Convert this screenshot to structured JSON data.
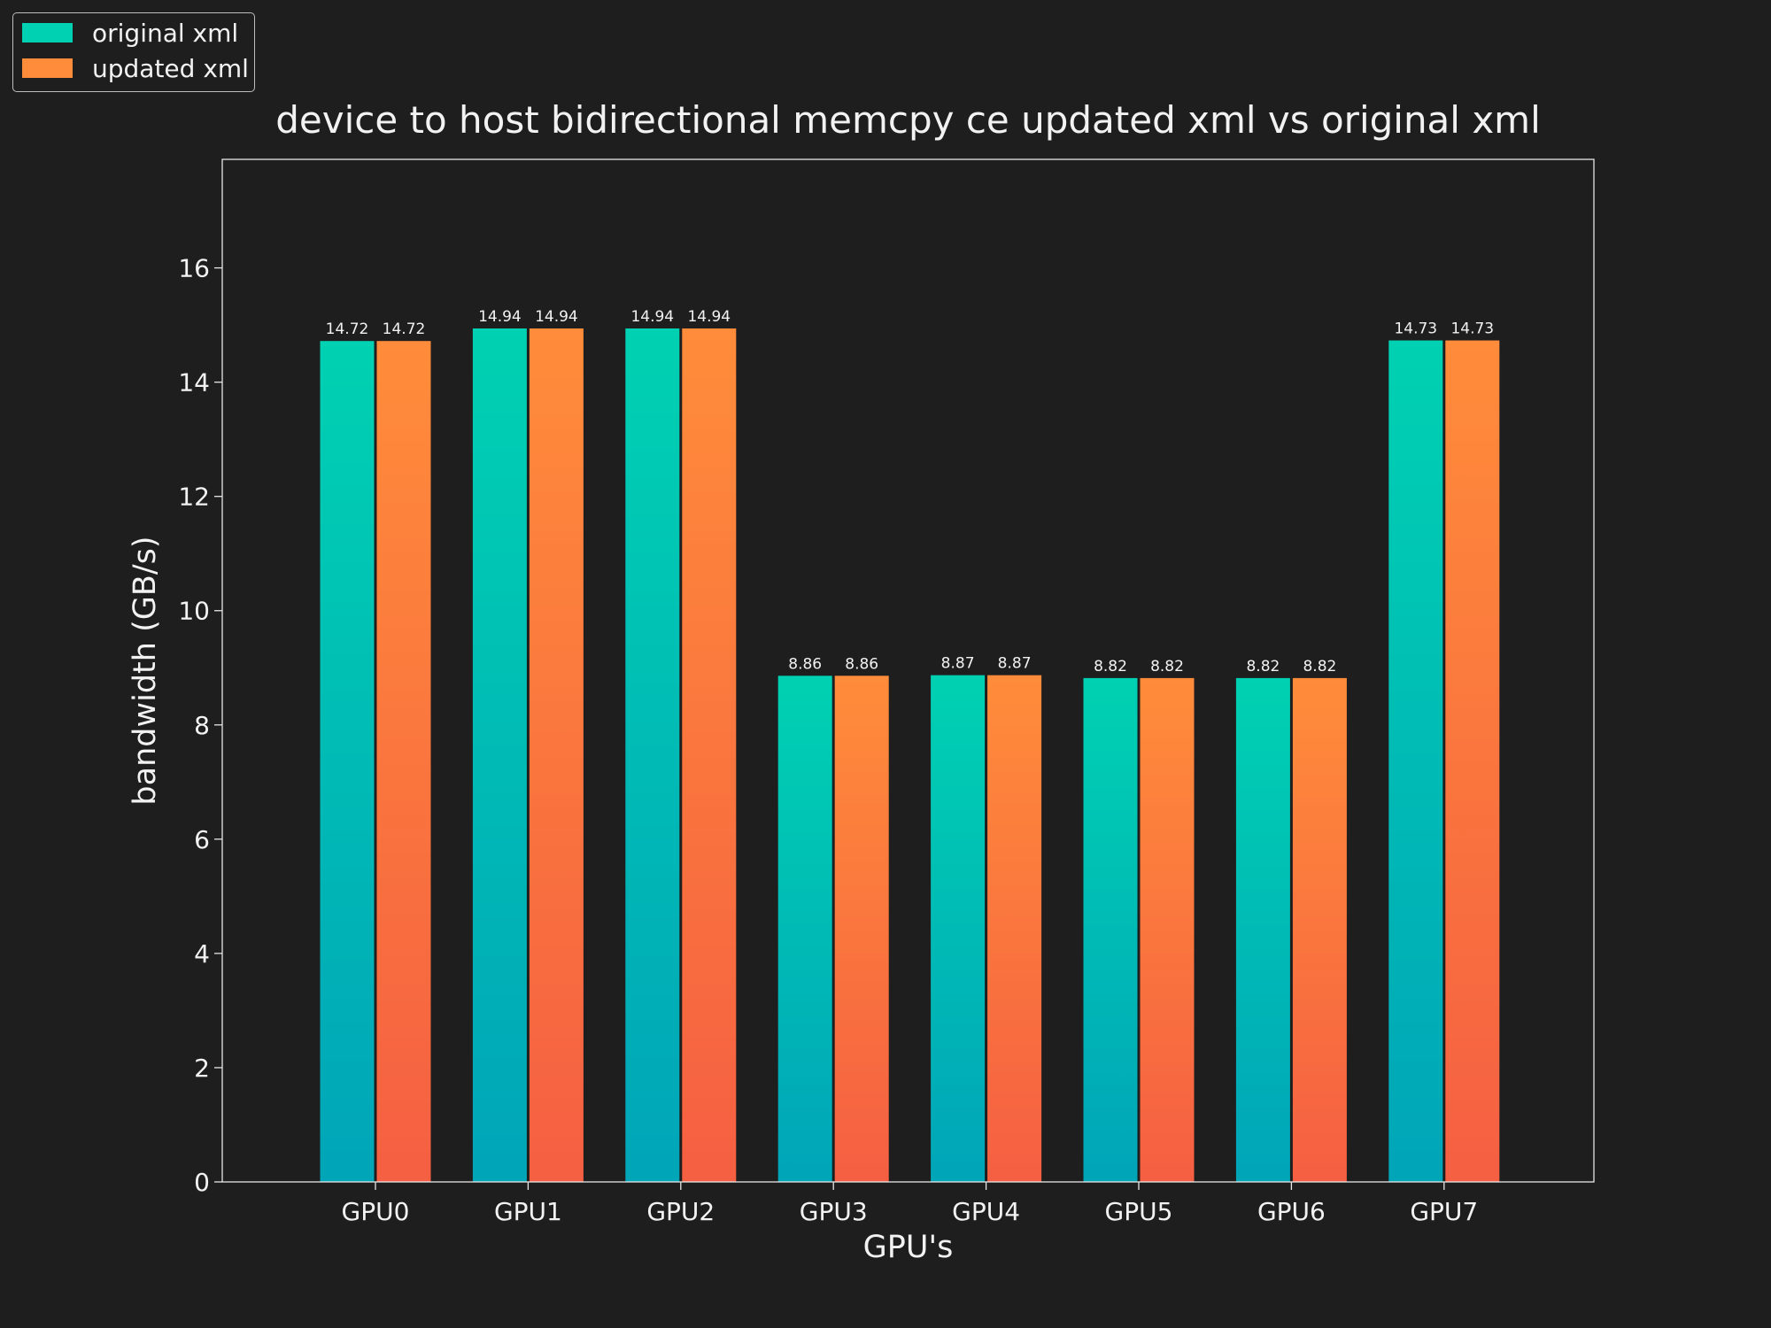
{
  "chart_data": {
    "type": "bar",
    "title": "device to host bidirectional memcpy ce updated xml vs original xml",
    "xlabel": "GPU's",
    "ylabel": "bandwidth (GB/s)",
    "categories": [
      "GPU0",
      "GPU1",
      "GPU2",
      "GPU3",
      "GPU4",
      "GPU5",
      "GPU6",
      "GPU7"
    ],
    "series": [
      {
        "name": "original xml",
        "values": [
          14.72,
          14.94,
          14.94,
          8.86,
          8.87,
          8.82,
          8.82,
          14.73
        ],
        "labels": [
          "14.72",
          "14.94",
          "14.94",
          "8.86",
          "8.87",
          "8.82",
          "8.82",
          "14.73"
        ],
        "color_top": "#00d1b2",
        "color_bottom": "#00a5b8"
      },
      {
        "name": "updated xml",
        "values": [
          14.72,
          14.94,
          14.94,
          8.86,
          8.87,
          8.82,
          8.82,
          14.73
        ],
        "labels": [
          "14.72",
          "14.94",
          "14.94",
          "8.86",
          "8.87",
          "8.82",
          "8.82",
          "14.73"
        ],
        "color_top": "#ff8c3a",
        "color_bottom": "#f55f42"
      }
    ],
    "ylim": [
      0,
      17.9
    ],
    "yticks": [
      "0",
      "2",
      "4",
      "6",
      "8",
      "10",
      "12",
      "14",
      "16"
    ],
    "grid": false,
    "legend_position": "top-left",
    "background_color": "#1e1e1e",
    "text_color": "#f2f2f2",
    "axis_color": "#e6e6e6"
  }
}
